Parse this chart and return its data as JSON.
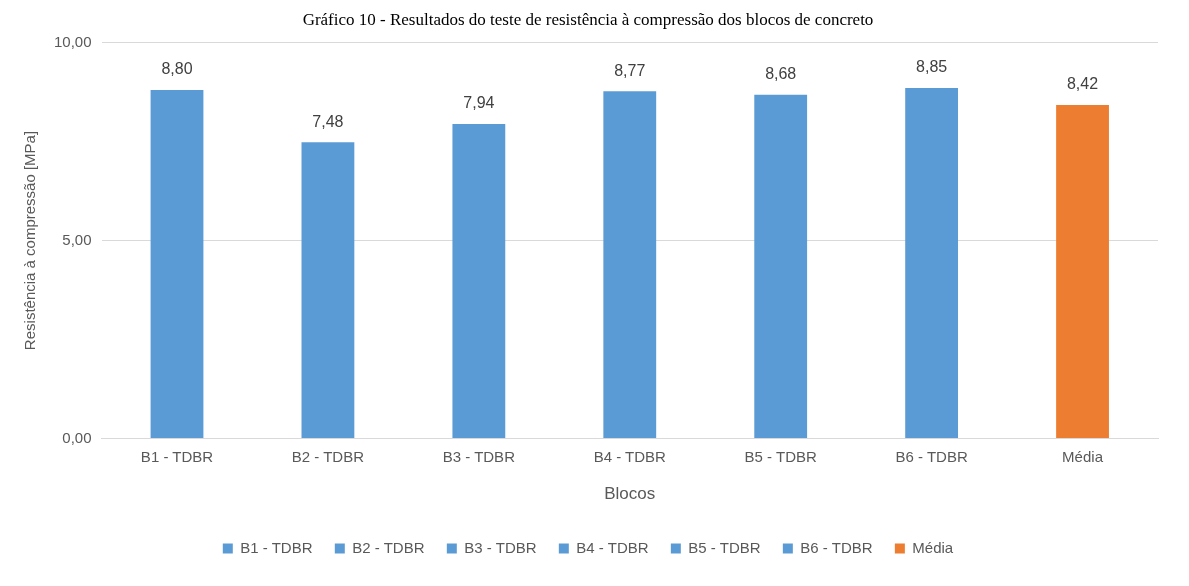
{
  "chart_data": {
    "type": "bar",
    "title": "Gráfico 10 - Resultados do teste de resistência à compressão dos blocos de concreto",
    "xlabel": "Blocos",
    "ylabel": "Resistência à compressão [MPa]",
    "categories": [
      "B1 - TDBR",
      "B2 - TDBR",
      "B3 - TDBR",
      "B4 - TDBR",
      "B5 - TDBR",
      "B6 - TDBR",
      "Média"
    ],
    "series": [
      {
        "name": "B1 - TDBR",
        "color": "#5b9bd5",
        "values": [
          8.8,
          null,
          null,
          null,
          null,
          null,
          null
        ],
        "value_labels": [
          "8,80",
          null,
          null,
          null,
          null,
          null,
          null
        ]
      },
      {
        "name": "B2 - TDBR",
        "color": "#5b9bd5",
        "values": [
          null,
          7.48,
          null,
          null,
          null,
          null,
          null
        ],
        "value_labels": [
          null,
          "7,48",
          null,
          null,
          null,
          null,
          null
        ]
      },
      {
        "name": "B3 - TDBR",
        "color": "#5b9bd5",
        "values": [
          null,
          null,
          7.94,
          null,
          null,
          null,
          null
        ],
        "value_labels": [
          null,
          null,
          "7,94",
          null,
          null,
          null,
          null
        ]
      },
      {
        "name": "B4 - TDBR",
        "color": "#5b9bd5",
        "values": [
          null,
          null,
          null,
          8.77,
          null,
          null,
          null
        ],
        "value_labels": [
          null,
          null,
          null,
          "8,77",
          null,
          null,
          null
        ]
      },
      {
        "name": "B5 - TDBR",
        "color": "#5b9bd5",
        "values": [
          null,
          null,
          null,
          null,
          8.68,
          null,
          null
        ],
        "value_labels": [
          null,
          null,
          null,
          null,
          "8,68",
          null,
          null
        ]
      },
      {
        "name": "B6 - TDBR",
        "color": "#5b9bd5",
        "values": [
          null,
          null,
          null,
          null,
          null,
          8.85,
          null
        ],
        "value_labels": [
          null,
          null,
          null,
          null,
          null,
          "8,85",
          null
        ]
      },
      {
        "name": "Média",
        "color": "#ed7d31",
        "values": [
          null,
          null,
          null,
          null,
          null,
          null,
          8.42
        ],
        "value_labels": [
          null,
          null,
          null,
          null,
          null,
          null,
          "8,42"
        ]
      }
    ],
    "ylim": [
      0,
      10
    ],
    "yticks": [
      {
        "value": 0,
        "label": "0,00"
      },
      {
        "value": 5,
        "label": "5,00"
      },
      {
        "value": 10,
        "label": "10,00"
      }
    ],
    "grid": "y",
    "legend": "bottom"
  }
}
